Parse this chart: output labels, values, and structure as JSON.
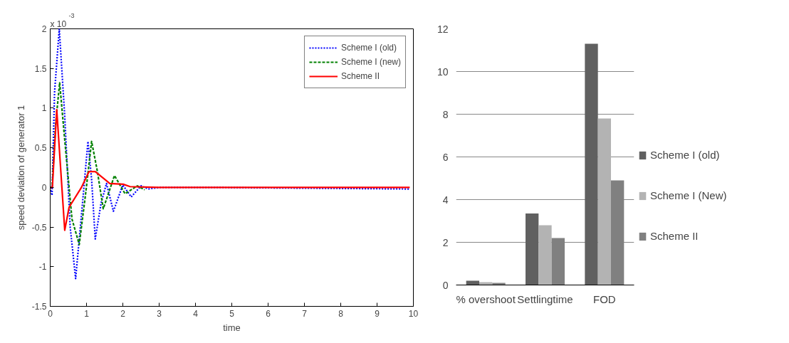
{
  "chart_data": [
    {
      "type": "line",
      "xlabel": "time",
      "ylabel": "speed deviation of generator 1",
      "annotations": [
        "x 10$^{-3}$"
      ],
      "xlim": [
        0,
        10
      ],
      "ylim": [
        -1.5,
        2
      ],
      "xticks": [
        0,
        1,
        2,
        3,
        4,
        5,
        6,
        7,
        8,
        9,
        10
      ],
      "yticks": [
        -1.5,
        -1,
        -0.5,
        0,
        0.5,
        1,
        1.5,
        2
      ],
      "grid": false,
      "legend": "top right",
      "series": [
        {
          "name": "Scheme I (old)",
          "color": "#0000ff",
          "line_style": "dotted",
          "x": [
            0,
            0.05,
            0.12,
            0.25,
            0.4,
            0.55,
            0.7,
            0.85,
            1.04,
            1.14,
            1.24,
            1.4,
            1.55,
            1.74,
            2.0,
            2.23,
            2.5,
            2.7,
            3.0,
            4.5,
            9.9
          ],
          "values": [
            0,
            -0.1,
            1.2,
            2.0,
            0.9,
            -0.5,
            -1.15,
            -0.4,
            0.58,
            0.1,
            -0.65,
            -0.2,
            0.05,
            -0.3,
            0.03,
            -0.12,
            0.02,
            -0.02,
            0,
            0,
            -0.02
          ]
        },
        {
          "name": "Scheme I (new)",
          "color": "#008000",
          "line_style": "dashed",
          "x": [
            0,
            0.05,
            0.15,
            0.26,
            0.4,
            0.6,
            0.8,
            0.97,
            1.14,
            1.3,
            1.46,
            1.77,
            2.06,
            2.4,
            2.6
          ],
          "values": [
            0,
            0,
            0.8,
            1.32,
            0.6,
            -0.4,
            -0.72,
            -0.1,
            0.58,
            0.2,
            -0.27,
            0.15,
            -0.08,
            0.02,
            -0.03
          ]
        },
        {
          "name": "Scheme II",
          "color": "#ff0000",
          "line_style": "solid",
          "x": [
            0,
            0.06,
            0.18,
            0.4,
            0.52,
            0.86,
            1.07,
            1.24,
            1.64,
            2.01,
            2.2,
            3.0,
            9.9
          ],
          "values": [
            0,
            0,
            0.98,
            -0.54,
            -0.25,
            0,
            0.2,
            0.2,
            0.05,
            0.04,
            0.01,
            0,
            0
          ]
        }
      ]
    },
    {
      "type": "bar",
      "categories": [
        "% overshoot",
        "Settlingtime",
        "FOD"
      ],
      "ylim": [
        0,
        12
      ],
      "yticks": [
        0,
        2,
        4,
        6,
        8,
        10,
        12
      ],
      "grid": "y",
      "legend": "right",
      "series": [
        {
          "name": "Scheme I (old)",
          "color": "#606060",
          "values": [
            0.2,
            3.35,
            11.3
          ]
        },
        {
          "name": "Scheme I (New)",
          "color": "#b3b3b3",
          "values": [
            0.13,
            2.8,
            7.8
          ]
        },
        {
          "name": "Scheme II",
          "color": "#808080",
          "values": [
            0.1,
            2.2,
            4.9
          ]
        }
      ]
    }
  ]
}
